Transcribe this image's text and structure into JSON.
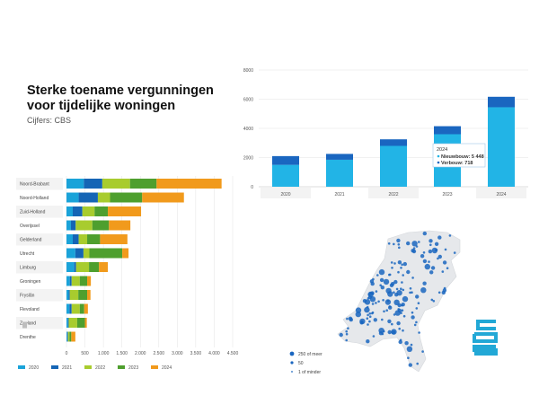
{
  "header": {
    "title": "Sterke toename vergunningen voor tijdelijke woningen",
    "source": "Cijfers: CBS"
  },
  "colors": {
    "2020": "#1aa3d9",
    "2021": "#1565b5",
    "2022": "#a8cc2e",
    "2023": "#4e9f2e",
    "2024": "#f19a1c",
    "nieuwbouw": "#22b4e6",
    "verbouw": "#1a66c0",
    "map_land": "#e6e8eb",
    "map_dot": "#1a66c0",
    "cbs": "#22a8d6"
  },
  "chart_data": [
    {
      "type": "bar",
      "orientation": "horizontal",
      "stacked": true,
      "categories": [
        "Noord-Brabant",
        "Noord-Holland",
        "Zuid-Holland",
        "Overijssel",
        "Gelderland",
        "Utrecht",
        "Limburg",
        "Groningen",
        "Fryslân",
        "Flevoland",
        "Zeeland",
        "Drenthe"
      ],
      "series": [
        {
          "name": "2020",
          "values": [
            470,
            330,
            170,
            120,
            170,
            240,
            210,
            90,
            60,
            80,
            40,
            20
          ]
        },
        {
          "name": "2021",
          "values": [
            500,
            520,
            260,
            130,
            160,
            220,
            50,
            50,
            30,
            60,
            20,
            20
          ]
        },
        {
          "name": "2022",
          "values": [
            750,
            330,
            330,
            450,
            230,
            160,
            350,
            220,
            230,
            220,
            230,
            40
          ]
        },
        {
          "name": "2023",
          "values": [
            720,
            870,
            360,
            450,
            350,
            890,
            270,
            200,
            240,
            120,
            210,
            50
          ]
        },
        {
          "name": "2024",
          "values": [
            1760,
            1130,
            900,
            580,
            740,
            170,
            240,
            100,
            90,
            100,
            50,
            110
          ]
        }
      ],
      "xlim": [
        0,
        4500
      ],
      "xticks": [
        "0",
        "500",
        "1.000",
        "1.500",
        "2.000",
        "2.500",
        "3.000",
        "3.500",
        "4.000",
        "4.500"
      ],
      "legend": [
        "2020",
        "2021",
        "2022",
        "2023",
        "2024"
      ],
      "legend_position": "bottom"
    },
    {
      "type": "bar",
      "stacked": true,
      "categories": [
        "2020",
        "2021",
        "2022",
        "2023",
        "2024"
      ],
      "series": [
        {
          "name": "Nieuwbouw",
          "values": [
            1500,
            1850,
            2800,
            3600,
            5448
          ]
        },
        {
          "name": "Verbouw",
          "values": [
            600,
            400,
            450,
            550,
            718
          ]
        }
      ],
      "ylim": [
        0,
        8000
      ],
      "yticks": [
        "0",
        "2000",
        "4000",
        "6000",
        "8000"
      ],
      "tooltip": {
        "title": "2024",
        "rows": [
          "Nieuwbouw: 5 448",
          "Verbouw: 718"
        ]
      }
    }
  ],
  "map": {
    "legend": [
      "250 of meer",
      "50",
      "1 of minder"
    ],
    "logo_text": "cbs"
  }
}
